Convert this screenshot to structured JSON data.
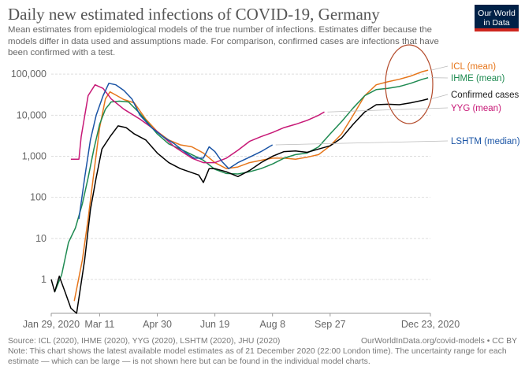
{
  "header": {
    "title": "Daily new estimated infections of COVID-19, Germany",
    "subtitle": "Mean estimates from epidemiological models of the true number of infections. Estimates differ because the models differ in data used and assumptions made. For comparison, confirmed cases are infections that have been confirmed with a test."
  },
  "logo": {
    "line1": "Our World",
    "line2": "in Data",
    "bg": "#002147",
    "accent": "#ce261e"
  },
  "footer": {
    "source": "Source: ICL (2020), IHME (2020), YYG (2020), LSHTM (2020), JHU (2020)",
    "credit": "OurWorldInData.org/covid-models • CC BY",
    "note": "Note: This chart shows the latest available model estimates as of 21 December 2020 (22:00 London time). The uncertainty range for each estimate — which can be large — is not shown here but can be found in the individual model charts."
  },
  "chart_data": {
    "type": "line",
    "title": "Daily new estimated infections of COVID-19, Germany",
    "yscale": "log",
    "ylim": [
      0.15,
      150000
    ],
    "y_ticks": [
      1,
      10,
      100,
      1000,
      10000,
      100000
    ],
    "y_tick_labels": [
      "1",
      "10",
      "100",
      "1,000",
      "10,000",
      "100,000"
    ],
    "x_range": [
      "2020-01-29",
      "2020-12-23"
    ],
    "x_ticks": [
      "2020-01-29",
      "2020-03-11",
      "2020-04-30",
      "2020-06-19",
      "2020-08-08",
      "2020-09-27",
      "2020-12-23"
    ],
    "x_tick_labels": [
      "Jan 29, 2020",
      "Mar 11",
      "Apr 30",
      "Jun 19",
      "Aug 8",
      "Sep 27",
      "Dec 23, 2020"
    ],
    "grid": "horizontal dashed",
    "legend": "right (labels at line ends)",
    "annotation": "ellipse highlighting December estimates",
    "series": [
      {
        "name": "ICL (mean)",
        "color": "#e6761b",
        "points": [
          [
            "2020-02-18",
            0.3
          ],
          [
            "2020-02-25",
            3
          ],
          [
            "2020-03-01",
            30
          ],
          [
            "2020-03-06",
            400
          ],
          [
            "2020-03-11",
            5000
          ],
          [
            "2020-03-16",
            25000
          ],
          [
            "2020-03-20",
            37000
          ],
          [
            "2020-03-26",
            30000
          ],
          [
            "2020-04-01",
            24000
          ],
          [
            "2020-04-10",
            20000
          ],
          [
            "2020-04-20",
            8000
          ],
          [
            "2020-04-30",
            4000
          ],
          [
            "2020-05-10",
            2500
          ],
          [
            "2020-05-20",
            1900
          ],
          [
            "2020-05-30",
            1700
          ],
          [
            "2020-06-09",
            1200
          ],
          [
            "2020-06-19",
            700
          ],
          [
            "2020-06-29",
            500
          ],
          [
            "2020-07-09",
            550
          ],
          [
            "2020-07-19",
            700
          ],
          [
            "2020-07-29",
            800
          ],
          [
            "2020-08-08",
            900
          ],
          [
            "2020-08-18",
            900
          ],
          [
            "2020-08-28",
            850
          ],
          [
            "2020-09-07",
            950
          ],
          [
            "2020-09-17",
            1100
          ],
          [
            "2020-09-27",
            1800
          ],
          [
            "2020-10-07",
            3500
          ],
          [
            "2020-10-17",
            10000
          ],
          [
            "2020-10-27",
            30000
          ],
          [
            "2020-11-06",
            55000
          ],
          [
            "2020-11-16",
            65000
          ],
          [
            "2020-11-26",
            75000
          ],
          [
            "2020-12-06",
            90000
          ],
          [
            "2020-12-16",
            115000
          ],
          [
            "2020-12-21",
            125000
          ]
        ]
      },
      {
        "name": "IHME (mean)",
        "color": "#1e8a51",
        "points": [
          [
            "2020-02-01",
            0.5
          ],
          [
            "2020-02-07",
            1.3
          ],
          [
            "2020-02-13",
            8
          ],
          [
            "2020-02-19",
            18
          ],
          [
            "2020-02-25",
            70
          ],
          [
            "2020-03-01",
            300
          ],
          [
            "2020-03-06",
            1500
          ],
          [
            "2020-03-11",
            6000
          ],
          [
            "2020-03-16",
            14000
          ],
          [
            "2020-03-21",
            21000
          ],
          [
            "2020-03-28",
            22000
          ],
          [
            "2020-04-05",
            21000
          ],
          [
            "2020-04-15",
            11000
          ],
          [
            "2020-04-30",
            3500
          ],
          [
            "2020-05-10",
            2000
          ],
          [
            "2020-05-20",
            1500
          ],
          [
            "2020-05-30",
            1100
          ],
          [
            "2020-06-09",
            800
          ],
          [
            "2020-06-19",
            480
          ],
          [
            "2020-06-29",
            380
          ],
          [
            "2020-07-09",
            370
          ],
          [
            "2020-07-19",
            420
          ],
          [
            "2020-07-29",
            500
          ],
          [
            "2020-08-08",
            650
          ],
          [
            "2020-08-18",
            900
          ],
          [
            "2020-08-28",
            1100
          ],
          [
            "2020-09-07",
            1200
          ],
          [
            "2020-09-17",
            1700
          ],
          [
            "2020-09-27",
            3500
          ],
          [
            "2020-10-07",
            7000
          ],
          [
            "2020-10-17",
            15000
          ],
          [
            "2020-10-27",
            30000
          ],
          [
            "2020-11-06",
            42000
          ],
          [
            "2020-11-16",
            45000
          ],
          [
            "2020-11-26",
            50000
          ],
          [
            "2020-12-06",
            60000
          ],
          [
            "2020-12-16",
            75000
          ],
          [
            "2020-12-21",
            82000
          ]
        ]
      },
      {
        "name": "Confirmed cases",
        "color": "#000000",
        "points": [
          [
            "2020-01-29",
            1
          ],
          [
            "2020-02-01",
            0.5
          ],
          [
            "2020-02-05",
            1.2
          ],
          [
            "2020-02-10",
            0.5
          ],
          [
            "2020-02-15",
            0.2
          ],
          [
            "2020-02-20",
            0.15
          ],
          [
            "2020-02-27",
            3
          ],
          [
            "2020-03-03",
            50
          ],
          [
            "2020-03-08",
            300
          ],
          [
            "2020-03-13",
            1500
          ],
          [
            "2020-03-20",
            3000
          ],
          [
            "2020-03-27",
            5500
          ],
          [
            "2020-04-03",
            5000
          ],
          [
            "2020-04-10",
            3500
          ],
          [
            "2020-04-20",
            2500
          ],
          [
            "2020-04-30",
            1200
          ],
          [
            "2020-05-10",
            700
          ],
          [
            "2020-05-20",
            500
          ],
          [
            "2020-05-30",
            400
          ],
          [
            "2020-06-05",
            350
          ],
          [
            "2020-06-09",
            230
          ],
          [
            "2020-06-14",
            500
          ],
          [
            "2020-06-19",
            500
          ],
          [
            "2020-06-29",
            420
          ],
          [
            "2020-07-09",
            320
          ],
          [
            "2020-07-19",
            450
          ],
          [
            "2020-07-29",
            700
          ],
          [
            "2020-08-08",
            1000
          ],
          [
            "2020-08-18",
            1300
          ],
          [
            "2020-08-28",
            1350
          ],
          [
            "2020-09-07",
            1250
          ],
          [
            "2020-09-17",
            1500
          ],
          [
            "2020-09-27",
            1800
          ],
          [
            "2020-10-07",
            2800
          ],
          [
            "2020-10-17",
            6000
          ],
          [
            "2020-10-27",
            12000
          ],
          [
            "2020-11-06",
            18000
          ],
          [
            "2020-11-16",
            18500
          ],
          [
            "2020-11-26",
            18000
          ],
          [
            "2020-12-06",
            20000
          ],
          [
            "2020-12-16",
            23000
          ],
          [
            "2020-12-21",
            25000
          ]
        ]
      },
      {
        "name": "YYG (mean)",
        "color": "#c71876",
        "points": [
          [
            "2020-02-15",
            850
          ],
          [
            "2020-02-22",
            850
          ],
          [
            "2020-02-24",
            3000
          ],
          [
            "2020-03-01",
            30000
          ],
          [
            "2020-03-07",
            55000
          ],
          [
            "2020-03-14",
            45000
          ],
          [
            "2020-03-21",
            25000
          ],
          [
            "2020-04-01",
            14000
          ],
          [
            "2020-04-15",
            8000
          ],
          [
            "2020-04-30",
            4000
          ],
          [
            "2020-05-15",
            1700
          ],
          [
            "2020-05-30",
            900
          ],
          [
            "2020-06-09",
            700
          ],
          [
            "2020-06-19",
            700
          ],
          [
            "2020-06-29",
            900
          ],
          [
            "2020-07-09",
            1400
          ],
          [
            "2020-07-19",
            2300
          ],
          [
            "2020-07-29",
            3000
          ],
          [
            "2020-08-08",
            3800
          ],
          [
            "2020-08-18",
            5000
          ],
          [
            "2020-08-28",
            6000
          ],
          [
            "2020-09-07",
            7500
          ],
          [
            "2020-09-17",
            10000
          ],
          [
            "2020-09-22",
            12000
          ]
        ]
      },
      {
        "name": "LSHTM (median)",
        "color": "#1a54a5",
        "points": [
          [
            "2020-02-22",
            30
          ],
          [
            "2020-02-27",
            300
          ],
          [
            "2020-03-03",
            2500
          ],
          [
            "2020-03-08",
            10000
          ],
          [
            "2020-03-14",
            30000
          ],
          [
            "2020-03-19",
            60000
          ],
          [
            "2020-03-25",
            55000
          ],
          [
            "2020-04-01",
            40000
          ],
          [
            "2020-04-08",
            25000
          ],
          [
            "2020-04-15",
            10000
          ],
          [
            "2020-04-25",
            5000
          ],
          [
            "2020-05-05",
            3000
          ],
          [
            "2020-05-15",
            2000
          ],
          [
            "2020-05-25",
            1200
          ],
          [
            "2020-06-01",
            900
          ],
          [
            "2020-06-09",
            900
          ],
          [
            "2020-06-14",
            1700
          ],
          [
            "2020-06-19",
            1300
          ],
          [
            "2020-06-25",
            750
          ],
          [
            "2020-07-01",
            500
          ],
          [
            "2020-07-09",
            700
          ],
          [
            "2020-07-19",
            950
          ],
          [
            "2020-07-29",
            1300
          ],
          [
            "2020-08-08",
            1900
          ]
        ]
      }
    ]
  }
}
